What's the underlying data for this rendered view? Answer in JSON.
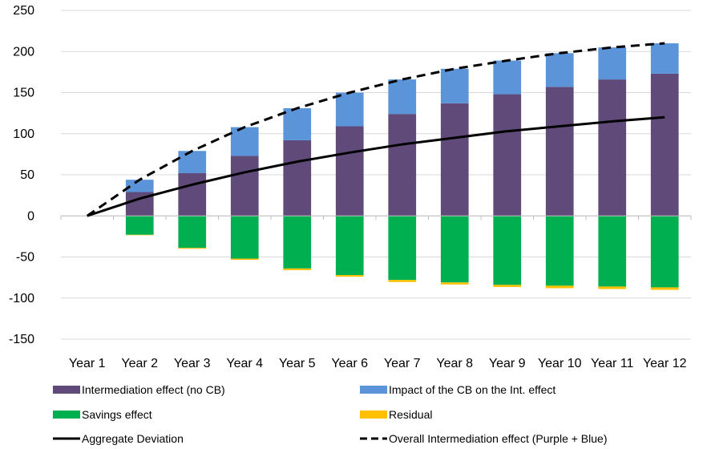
{
  "chart_data": {
    "type": "bar",
    "stacked": true,
    "title": "",
    "xlabel": "",
    "ylabel": "",
    "ylim": [
      -150,
      250
    ],
    "yticks": [
      250,
      200,
      150,
      100,
      50,
      0,
      -50,
      -100,
      -150
    ],
    "grid": "horizontal",
    "legend_position": "bottom",
    "categories": [
      "Year 1",
      "Year 2",
      "Year 3",
      "Year 4",
      "Year 5",
      "Year 6",
      "Year 7",
      "Year 8",
      "Year 9",
      "Year 10",
      "Year 11",
      "Year 12"
    ],
    "series": [
      {
        "name": "Intermediation effect (no CB)",
        "kind": "bar",
        "color": "#5f4a7a",
        "values": [
          0,
          29,
          52,
          73,
          92,
          109,
          124,
          137,
          148,
          157,
          166,
          173
        ]
      },
      {
        "name": "Impact of the CB on the Int. effect",
        "kind": "bar",
        "color": "#5b94d8",
        "values": [
          0,
          15,
          27,
          35,
          39,
          41,
          42,
          42,
          41,
          41,
          39,
          37
        ]
      },
      {
        "name": "Savings effect",
        "kind": "bar",
        "color": "#00b050",
        "values": [
          0,
          -23,
          -39,
          -52,
          -64,
          -72,
          -78,
          -81,
          -84,
          -85,
          -86,
          -87
        ]
      },
      {
        "name": "Residual",
        "kind": "bar",
        "color": "#ffc000",
        "values": [
          0,
          -0.5,
          -1,
          -1.5,
          -2,
          -2,
          -2.5,
          -2.5,
          -2.5,
          -3,
          -3,
          -3
        ]
      },
      {
        "name": "Aggregate Deviation",
        "kind": "line",
        "style": "solid",
        "color": "#000000",
        "values": [
          0,
          21,
          38,
          53,
          66,
          77,
          87,
          95,
          103,
          109,
          115,
          120
        ]
      },
      {
        "name": "Overall Intermediation effect (Purple + Blue)",
        "kind": "line",
        "style": "dashed",
        "color": "#000000",
        "values": [
          0,
          44,
          79,
          108,
          131,
          150,
          166,
          179,
          189,
          198,
          205,
          210
        ]
      }
    ]
  }
}
